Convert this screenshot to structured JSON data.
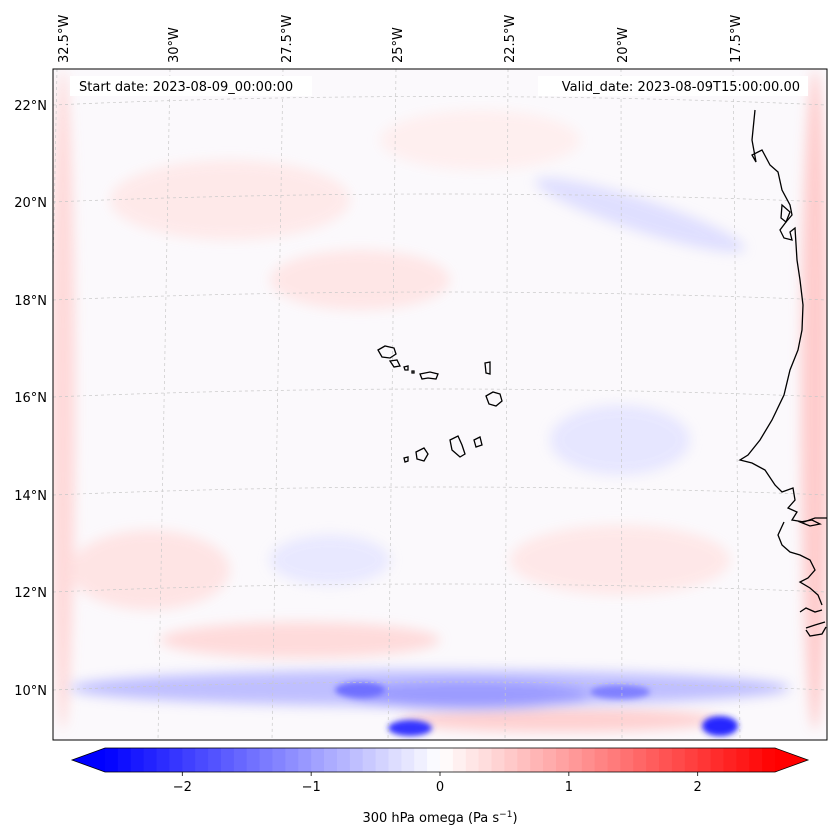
{
  "map": {
    "lon_ticks": [
      "32.5°W",
      "30°W",
      "27.5°W",
      "25°W",
      "22.5°W",
      "20°W",
      "17.5°W"
    ],
    "lat_ticks": [
      "22°N",
      "20°N",
      "18°N",
      "16°N",
      "14°N",
      "12°N",
      "10°N"
    ],
    "start_date": "Start date: 2023-08-09_00:00:00",
    "valid_date": "Valid_date: 2023-08-09T15:00:00.00",
    "field": "300 hPa omega",
    "colormap": "bwr",
    "colors": {
      "min": "#0000ff",
      "mid": "#ffffff",
      "max": "#ff0000",
      "coast": "#000000",
      "grid": "#bbbbbb"
    },
    "color_range": [
      -2.6,
      2.6
    ],
    "extend": "both"
  },
  "colorbar": {
    "ticks": [
      {
        "value": -2,
        "label": "−2"
      },
      {
        "value": -1,
        "label": "−1"
      },
      {
        "value": 0,
        "label": "0"
      },
      {
        "value": 1,
        "label": "1"
      },
      {
        "value": 2,
        "label": "2"
      }
    ],
    "label": "300 hPa omega (Pa s",
    "label_sup": "−1",
    "label_tail": ")"
  }
}
